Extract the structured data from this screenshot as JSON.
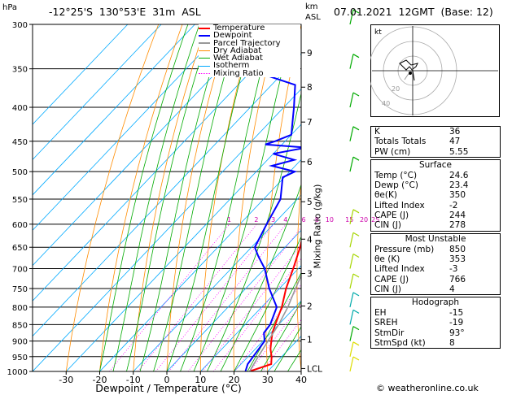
{
  "header": {
    "hpa_unit": "hPa",
    "location": "-12°25'S  130°53'E  31m  ASL",
    "km_unit_line1": "km",
    "km_unit_line2": "ASL",
    "datetime": "07.01.2021  12GMT  (Base: 12)"
  },
  "legend": [
    {
      "label": "Temperature",
      "color": "#ff0000",
      "style": "solid"
    },
    {
      "label": "Dewpoint",
      "color": "#0000ff",
      "style": "solid"
    },
    {
      "label": "Parcel Trajectory",
      "color": "#999999",
      "style": "solid"
    },
    {
      "label": "Dry Adiabat",
      "color": "#ff8c00",
      "style": "solid"
    },
    {
      "label": "Wet Adiabat",
      "color": "#00aa00",
      "style": "solid"
    },
    {
      "label": "Isotherm",
      "color": "#00aaff",
      "style": "solid"
    },
    {
      "label": "Mixing Ratio",
      "color": "#ff00ff",
      "style": "dotted"
    }
  ],
  "chart_data": {
    "type": "line",
    "xlabel": "Dewpoint / Temperature (°C)",
    "ylabel_right": "Mixing Ratio (g/kg)",
    "y_scale": "log-pressure",
    "pressure_ticks": [
      300,
      350,
      400,
      450,
      500,
      550,
      600,
      650,
      700,
      750,
      800,
      850,
      900,
      950,
      1000
    ],
    "x_ticks": [
      -30,
      -20,
      -10,
      0,
      10,
      20,
      30,
      40
    ],
    "xlim": [
      -40,
      40
    ],
    "skew": true,
    "km_ticks": [
      {
        "label": "9",
        "p": 331
      },
      {
        "label": "8",
        "p": 373
      },
      {
        "label": "7",
        "p": 421
      },
      {
        "label": "6",
        "p": 483
      },
      {
        "label": "5",
        "p": 555
      },
      {
        "label": "4",
        "p": 632
      },
      {
        "label": "3",
        "p": 712
      },
      {
        "label": "2",
        "p": 797
      },
      {
        "label": "1",
        "p": 895
      },
      {
        "label": "LCL",
        "p": 990
      }
    ],
    "mixing_ratio_labels": [
      "1",
      "2",
      "3",
      "4",
      "6",
      "8",
      "10",
      "15",
      "20",
      "25"
    ],
    "mixing_ratio_values": [
      1,
      2,
      3,
      4,
      6,
      8,
      10,
      15,
      20,
      25
    ],
    "series": [
      {
        "name": "Temperature",
        "color": "#ff0000",
        "p": [
          1000,
          975,
          950,
          925,
          900,
          875,
          850,
          800,
          750,
          700,
          650,
          600,
          550,
          500,
          470,
          450,
          420,
          400,
          370
        ],
        "t": [
          24.6,
          29.0,
          27.0,
          24.5,
          22.5,
          20.5,
          19.0,
          16.0,
          12.0,
          8.5,
          4.5,
          -0.5,
          -6.0,
          -10.0,
          -13.5,
          -14.5,
          -19.5,
          -22.5,
          -28.0
        ]
      },
      {
        "name": "Dewpoint",
        "color": "#0000ff",
        "p": [
          1000,
          975,
          950,
          925,
          900,
          875,
          850,
          800,
          750,
          700,
          670,
          650,
          600,
          550,
          510,
          500,
          490,
          480,
          470,
          460,
          455,
          450,
          440,
          400,
          370,
          350,
          330,
          310,
          300
        ],
        "t": [
          23.4,
          22.0,
          21.5,
          21.0,
          20.5,
          18.0,
          17.5,
          14.5,
          7.0,
          0.0,
          -5.5,
          -9.0,
          -12.0,
          -15.0,
          -20.5,
          -18.5,
          -27.0,
          -22.0,
          -30.0,
          -22.0,
          -35.0,
          -33.0,
          -30.0,
          -37.0,
          -43.0,
          -62.0,
          -55.0,
          -60.0,
          -65.0
        ]
      },
      {
        "name": "Parcel Trajectory",
        "color": "#999999",
        "p": [
          1000,
          950,
          900,
          850,
          800,
          750,
          700,
          650,
          600,
          550,
          500,
          450,
          400,
          370
        ],
        "t": [
          24.6,
          23.0,
          21.5,
          20.0,
          17.8,
          14.8,
          11.8,
          8.5,
          4.5,
          0.0,
          -5.0,
          -11.5,
          -19.5,
          -25.0
        ]
      }
    ]
  },
  "hodograph": {
    "unit_label": "kt",
    "ring_labels": [
      "20",
      "40"
    ]
  },
  "indices": {
    "k_label": "K",
    "k_value": "36",
    "tt_label": "Totals Totals",
    "tt_value": "47",
    "pw_label": "PW (cm)",
    "pw_value": "5.55"
  },
  "surface": {
    "title": "Surface",
    "rows": [
      {
        "label": "Temp (°C)",
        "value": "24.6"
      },
      {
        "label": "Dewp (°C)",
        "value": "23.4"
      },
      {
        "label": "θe(K)",
        "value": "350"
      },
      {
        "label": "Lifted Index",
        "value": "-2"
      },
      {
        "label": "CAPE (J)",
        "value": "244"
      },
      {
        "label": "CIN (J)",
        "value": "278"
      }
    ]
  },
  "most_unstable": {
    "title": "Most Unstable",
    "rows": [
      {
        "label": "Pressure (mb)",
        "value": "850"
      },
      {
        "label": "θe (K)",
        "value": "353"
      },
      {
        "label": "Lifted Index",
        "value": "-3"
      },
      {
        "label": "CAPE (J)",
        "value": "766"
      },
      {
        "label": "CIN (J)",
        "value": "4"
      }
    ]
  },
  "hodograph_table": {
    "title": "Hodograph",
    "rows": [
      {
        "label": "EH",
        "value": "-15"
      },
      {
        "label": "SREH",
        "value": "-19"
      },
      {
        "label": "StmDir",
        "value": "93°"
      },
      {
        "label": "StmSpd (kt)",
        "value": "8"
      }
    ]
  },
  "copyright": "© weatheronline.co.uk",
  "colors": {
    "dry_adiabat": "#ff8c00",
    "wet_adiabat": "#00aa00",
    "isotherm": "#00aaff",
    "mixing_ratio": "#ff00ff"
  }
}
